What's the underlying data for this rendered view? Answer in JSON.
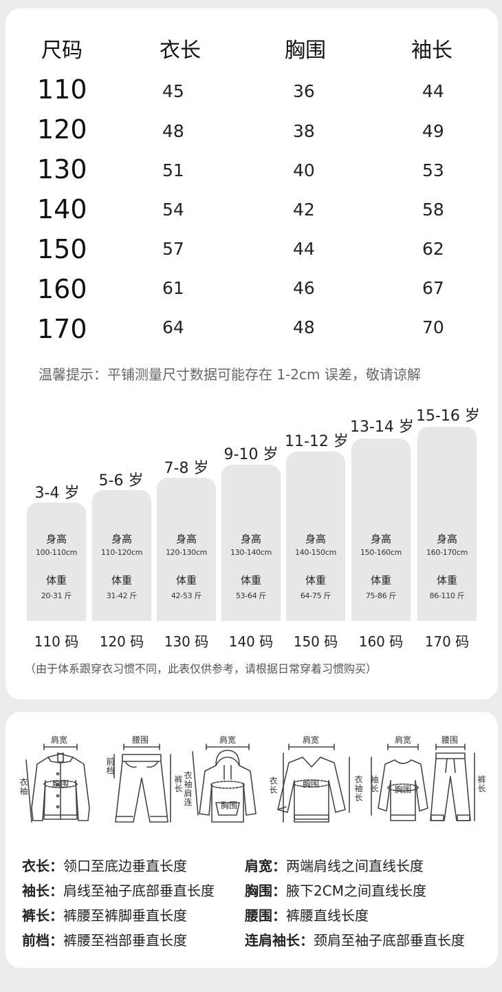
{
  "table": {
    "headers": [
      "尺码",
      "衣长",
      "胸围",
      "袖长"
    ],
    "rows": [
      [
        "110",
        "45",
        "36",
        "44"
      ],
      [
        "120",
        "48",
        "38",
        "49"
      ],
      [
        "130",
        "51",
        "40",
        "53"
      ],
      [
        "140",
        "54",
        "42",
        "58"
      ],
      [
        "150",
        "57",
        "44",
        "62"
      ],
      [
        "160",
        "61",
        "46",
        "67"
      ],
      [
        "170",
        "64",
        "48",
        "70"
      ]
    ]
  },
  "tip": "温馨提示：平铺测量尺寸数据可能存在 1-2cm 误差，敬请谅解",
  "age_chart": {
    "height_label": "身高",
    "weight_label": "体重",
    "groups": [
      {
        "age": "3-4 岁",
        "height": "100-110cm",
        "weight": "20-31 斤",
        "code": "110 码"
      },
      {
        "age": "5-6 岁",
        "height": "110-120cm",
        "weight": "31-42 斤",
        "code": "120 码"
      },
      {
        "age": "7-8 岁",
        "height": "120-130cm",
        "weight": "42-53 斤",
        "code": "130 码"
      },
      {
        "age": "9-10 岁",
        "height": "130-140cm",
        "weight": "53-64 斤",
        "code": "140 码"
      },
      {
        "age": "11-12 岁",
        "height": "140-150cm",
        "weight": "64-75 斤",
        "code": "150 码"
      },
      {
        "age": "13-14 岁",
        "height": "150-160cm",
        "weight": "75-86 斤",
        "code": "160 码"
      },
      {
        "age": "15-16 岁",
        "height": "160-170cm",
        "weight": "86-110 斤",
        "code": "170 码"
      }
    ],
    "note": "（由于体系跟穿衣习惯不同，此表仅供参考，请根据日常穿着习惯购买）"
  },
  "diagram_labels": {
    "shoulder": "肩宽",
    "waist": "腰围",
    "chest": "胸围",
    "sleeve": "衣袖",
    "front_rise": "前档",
    "pants_length": "裤长",
    "raglan_sleeve": "衣袖肩连",
    "body_length": "衣长",
    "body_sleeve": "衣袖长",
    "sleeve_short": "袖长"
  },
  "definitions": [
    {
      "term": "衣长：",
      "desc": "领口至底边垂直长度"
    },
    {
      "term": "肩宽：",
      "desc": "两端肩线之间直线长度"
    },
    {
      "term": "袖长：",
      "desc": "肩线至袖子底部垂直长度"
    },
    {
      "term": "胸围：",
      "desc": "腋下2CM之间直线长度"
    },
    {
      "term": "裤长：",
      "desc": "裤腰至裤脚垂直长度"
    },
    {
      "term": "腰围：",
      "desc": "裤腰直线长度"
    },
    {
      "term": "前档：",
      "desc": "裤腰至裆部垂直长度"
    },
    {
      "term": "连肩袖长：",
      "desc": "颈肩至袖子底部垂直长度"
    }
  ]
}
